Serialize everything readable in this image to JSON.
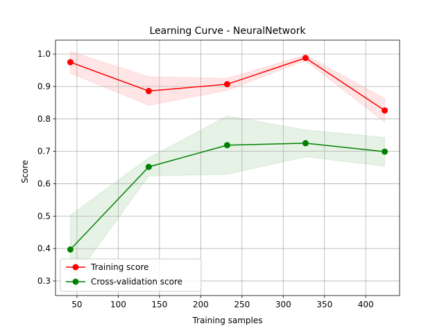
{
  "chart_data": {
    "type": "line",
    "title": "Learning Curve - NeuralNetwork",
    "xlabel": "Training samples",
    "ylabel": "Score",
    "xlim": [
      24.0,
      441.0
    ],
    "ylim": [
      0.255,
      1.043
    ],
    "xticks": [
      50,
      100,
      150,
      200,
      250,
      300,
      350,
      400
    ],
    "yticks": [
      0.3,
      0.4,
      0.5,
      0.6,
      0.7,
      0.8,
      0.9,
      1.0
    ],
    "grid": true,
    "legend_position": "lower left",
    "x": [
      42,
      137,
      232,
      327,
      423
    ],
    "series": [
      {
        "name": "Training score",
        "color": "#ff0000",
        "marker": "circle",
        "values": [
          0.975,
          0.886,
          0.907,
          0.988,
          0.826
        ],
        "band_lower": [
          0.941,
          0.842,
          0.888,
          0.98,
          0.79
        ],
        "band_upper": [
          1.008,
          0.93,
          0.925,
          0.997,
          0.863
        ]
      },
      {
        "name": "Cross-validation score",
        "color": "#008000",
        "marker": "circle",
        "values": [
          0.397,
          0.652,
          0.719,
          0.725,
          0.699
        ],
        "band_lower": [
          0.29,
          0.624,
          0.629,
          0.683,
          0.654
        ],
        "band_upper": [
          0.503,
          0.68,
          0.809,
          0.766,
          0.743
        ]
      }
    ]
  }
}
